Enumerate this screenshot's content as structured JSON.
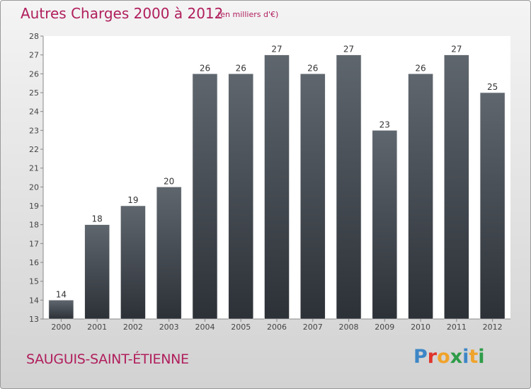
{
  "header": {
    "title": "Autres Charges 2000 à 2012",
    "unit_note": "(en milliers d'€)"
  },
  "footer": {
    "commune": "SAUGUIS-SAINT-ÉTIENNE",
    "logo_letters": [
      "P",
      "r",
      "o",
      "x",
      "i",
      "t",
      "i"
    ]
  },
  "colors": {
    "title": "#b01e5c",
    "bar_top": "#5f666e",
    "bar_bottom": "#2c3137",
    "logo": [
      "#3d86c6",
      "#e0342b",
      "#f0a32b",
      "#2e9c48",
      "#3d86c6",
      "#f0a32b",
      "#2e9c48"
    ]
  },
  "chart_data": {
    "type": "bar",
    "categories": [
      "2000",
      "2001",
      "2002",
      "2003",
      "2004",
      "2005",
      "2006",
      "2007",
      "2008",
      "2009",
      "2010",
      "2011",
      "2012"
    ],
    "values": [
      14,
      18,
      19,
      20,
      26,
      26,
      27,
      26,
      27,
      23,
      26,
      27,
      25
    ],
    "ylim": [
      13,
      28
    ],
    "yticks": [
      13,
      14,
      15,
      16,
      17,
      18,
      19,
      20,
      21,
      22,
      23,
      24,
      25,
      26,
      27,
      28
    ],
    "data_labels": true,
    "grid": false
  }
}
